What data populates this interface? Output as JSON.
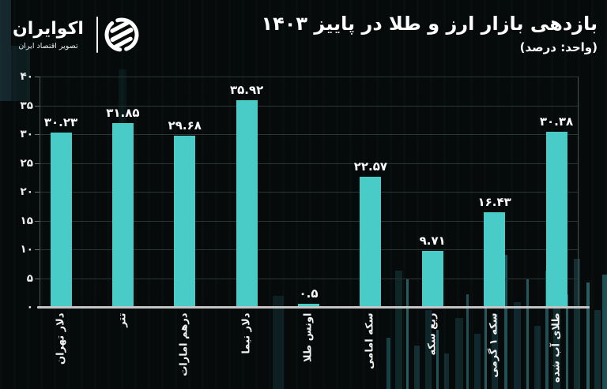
{
  "brand": {
    "name": "اکوایران",
    "tagline": "تصویر اقتصاد ایران"
  },
  "header": {
    "title": "بازدهی بازار ارز و طلا در پاییز ۱۴۰۳",
    "subtitle": "(واحد: درصد)"
  },
  "chart_data": {
    "type": "bar",
    "title": "بازدهی بازار ارز و طلا در پاییز ۱۴۰۳",
    "unit_note": "(واحد: درصد)",
    "categories": [
      "دلار تهران",
      "تتر",
      "درهم امارات",
      "دلار نیما",
      "اونس طلا",
      "سکه امامی",
      "ربع سکه",
      "سکه ۱ گرمی",
      "طلای آب شده"
    ],
    "values": [
      30.23,
      31.85,
      29.68,
      35.92,
      0.5,
      22.57,
      9.71,
      16.43,
      30.38
    ],
    "value_labels": [
      "۳۰.۲۳",
      "۳۱.۸۵",
      "۲۹.۶۸",
      "۳۵.۹۲",
      "۰.۵",
      "۲۲.۵۷",
      "۹.۷۱",
      "۱۶.۴۳",
      "۳۰.۳۸"
    ],
    "y_ticks": [
      0,
      5,
      10,
      15,
      20,
      25,
      30,
      35,
      40
    ],
    "y_tick_labels": [
      "۰",
      "۵",
      "۱۰",
      "۱۵",
      "۲۰",
      "۲۵",
      "۳۰",
      "۳۵",
      "۴۰"
    ],
    "ylim": [
      0,
      40
    ],
    "xlabel": "",
    "ylabel": "",
    "bar_color": "#49CBC8",
    "grid": true,
    "legend": false
  }
}
